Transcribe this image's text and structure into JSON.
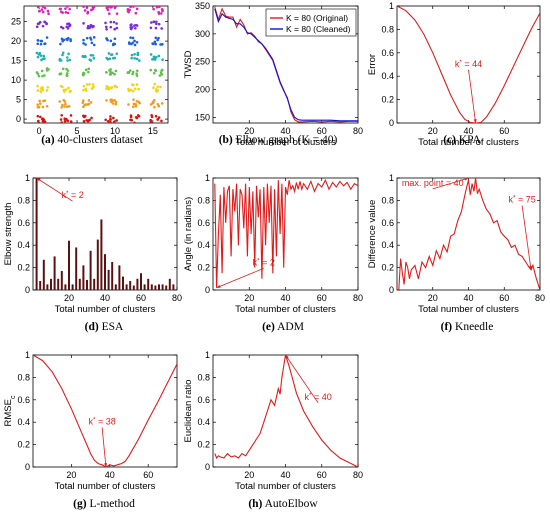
{
  "chart_data": [
    {
      "id": "a",
      "type": "scatter",
      "caption_letter": "(a)",
      "caption_text": "40-clusters dataset",
      "xlim": [
        -2,
        17
      ],
      "ylim": [
        -1,
        29
      ],
      "xticks": [
        0,
        5,
        10,
        15
      ],
      "yticks": [
        0,
        5,
        10,
        15,
        20,
        25
      ],
      "cluster_x": [
        0.5,
        3.5,
        6.5,
        9.5,
        12.5,
        15.5
      ],
      "cluster_y": [
        0,
        4,
        8,
        12,
        16,
        20,
        24,
        28
      ],
      "cluster_colors": [
        "#e01010",
        "#f39a1d",
        "#f5d30a",
        "#5cc24a",
        "#1fb0b0",
        "#1d5fe0",
        "#7a2be0",
        "#e020b8"
      ]
    },
    {
      "id": "b",
      "type": "line",
      "caption_letter": "(b)",
      "caption_text": "Elbow graph (K = 40)",
      "xlabel": "Total number of clusters",
      "ylabel": "TWSD",
      "xlim": [
        0,
        80
      ],
      "ylim": [
        140,
        350
      ],
      "xticks": [
        20,
        40,
        60,
        80
      ],
      "yticks": [
        150,
        200,
        250,
        300,
        350
      ],
      "legend_position": "top-right",
      "series": [
        {
          "name": "K = 80 (Original)",
          "color": "#e01b1b",
          "x": [
            1,
            3,
            5,
            7,
            9,
            11,
            13,
            15,
            17,
            19,
            21,
            23,
            25,
            27,
            29,
            31,
            33,
            35,
            37,
            39,
            41,
            43,
            45,
            47,
            49,
            55,
            60,
            65,
            70,
            75,
            80
          ],
          "y": [
            348,
            326,
            345,
            332,
            330,
            330,
            312,
            326,
            316,
            300,
            302,
            296,
            286,
            282,
            272,
            262,
            252,
            232,
            212,
            198,
            186,
            160,
            146,
            142,
            142,
            143,
            142,
            143,
            142,
            143,
            143
          ]
        },
        {
          "name": "K = 80 (Cleaned)",
          "color": "#1010d8",
          "x": [
            1,
            3,
            5,
            7,
            9,
            11,
            13,
            15,
            17,
            19,
            21,
            23,
            25,
            27,
            29,
            31,
            33,
            35,
            37,
            39,
            41,
            43,
            45,
            47,
            49,
            55,
            60,
            65,
            70,
            75,
            80
          ],
          "y": [
            345,
            322,
            336,
            330,
            328,
            326,
            318,
            318,
            312,
            302,
            300,
            294,
            288,
            282,
            274,
            264,
            254,
            234,
            214,
            199,
            184,
            164,
            150,
            146,
            145,
            145,
            145,
            145,
            144,
            144,
            144
          ]
        }
      ]
    },
    {
      "id": "c",
      "type": "line",
      "caption_letter": "(c)",
      "caption_text": "KPA",
      "xlabel": "Total number of clusters",
      "ylabel": "Error",
      "xlim": [
        0,
        80
      ],
      "ylim": [
        0,
        1
      ],
      "xticks": [
        20,
        40,
        60
      ],
      "yticks": [
        0,
        0.2,
        0.4,
        0.6,
        0.8,
        1
      ],
      "series": [
        {
          "color": "#e01b1b",
          "x": [
            0,
            5,
            10,
            15,
            20,
            25,
            30,
            35,
            38,
            41,
            44,
            47,
            50,
            55,
            60,
            65,
            70,
            75,
            80
          ],
          "y": [
            1.0,
            0.96,
            0.88,
            0.76,
            0.6,
            0.42,
            0.24,
            0.09,
            0.03,
            0.005,
            0.0,
            0.005,
            0.05,
            0.17,
            0.32,
            0.48,
            0.64,
            0.8,
            0.94
          ]
        }
      ],
      "annotations": [
        {
          "text": "k",
          "sup": "*",
          "rest": " = 44",
          "x": 44,
          "y": 0.0,
          "tx": 40,
          "ty": 0.48
        }
      ]
    },
    {
      "id": "d",
      "type": "bar",
      "caption_letter": "(d)",
      "caption_text": "ESA",
      "xlabel": "Total number of clusters",
      "ylabel": "Elbow strength",
      "xlim": [
        0,
        80
      ],
      "ylim": [
        0,
        1
      ],
      "xticks": [
        20,
        40,
        60,
        80
      ],
      "yticks": [
        0,
        0.2,
        0.4,
        0.6,
        0.8,
        1
      ],
      "x": [
        2,
        4,
        6,
        8,
        10,
        12,
        14,
        16,
        18,
        20,
        22,
        24,
        26,
        28,
        30,
        32,
        34,
        36,
        38,
        40,
        42,
        44,
        46,
        48,
        50,
        52,
        54,
        56,
        58,
        60,
        62,
        64,
        66,
        68,
        70,
        72,
        74,
        76,
        78
      ],
      "values": [
        1.0,
        0.08,
        0.27,
        0.05,
        0.1,
        0.3,
        0.1,
        0.17,
        0.05,
        0.44,
        0.05,
        0.38,
        0.1,
        0.22,
        0.09,
        0.35,
        0.1,
        0.45,
        0.63,
        0.32,
        0.18,
        0.25,
        0.05,
        0.22,
        0.12,
        0.05,
        0.08,
        0.04,
        0.1,
        0.15,
        0.05,
        0.1,
        0.05,
        0.04,
        0.05,
        0.05,
        0.04,
        0.1,
        0.05
      ],
      "bar_color": "#5a1010",
      "annotations": [
        {
          "text": "k",
          "sup": "*",
          "rest": " = 2",
          "x": 2,
          "y": 1.0,
          "tx": 22,
          "ty": 0.82
        }
      ]
    },
    {
      "id": "e",
      "type": "line",
      "caption_letter": "(e)",
      "caption_text": "ADM",
      "xlabel": "Total number of clusters",
      "ylabel": "Angle (in radians)",
      "xlim": [
        0,
        80
      ],
      "ylim": [
        0,
        1
      ],
      "xticks": [
        20,
        40,
        60,
        80
      ],
      "yticks": [
        0,
        0.2,
        0.4,
        0.6,
        0.8,
        1
      ],
      "series": [
        {
          "color": "#e01b1b",
          "x": [
            1,
            2,
            3,
            4,
            5,
            6,
            7,
            8,
            9,
            10,
            11,
            12,
            13,
            14,
            15,
            16,
            17,
            18,
            19,
            20,
            21,
            22,
            23,
            24,
            25,
            26,
            27,
            28,
            29,
            30,
            31,
            32,
            33,
            34,
            35,
            36,
            37,
            38,
            39,
            40,
            41,
            42,
            43,
            44,
            45,
            46,
            47,
            48,
            49,
            50,
            52,
            54,
            56,
            58,
            60,
            62,
            64,
            66,
            68,
            70,
            72,
            74,
            76,
            78,
            80
          ],
          "y": [
            0.95,
            0.02,
            0.5,
            0.85,
            0.15,
            0.92,
            0.6,
            0.88,
            0.93,
            0.3,
            0.9,
            0.7,
            0.95,
            0.4,
            0.9,
            0.85,
            0.55,
            0.95,
            0.3,
            0.92,
            0.5,
            0.88,
            0.2,
            0.93,
            0.65,
            0.9,
            0.1,
            0.92,
            0.4,
            0.95,
            0.6,
            0.93,
            0.15,
            0.9,
            0.3,
            0.98,
            0.5,
            0.95,
            0.2,
            0.92,
            0.85,
            0.98,
            0.9,
            0.93,
            0.88,
            0.96,
            0.9,
            0.97,
            0.9,
            0.95,
            0.9,
            0.97,
            0.88,
            0.95,
            0.92,
            0.98,
            0.9,
            0.96,
            0.92,
            0.97,
            0.93,
            0.96,
            0.9,
            0.95,
            0.93
          ]
        }
      ],
      "annotations": [
        {
          "text": "k",
          "sup": "*",
          "rest": " = 2",
          "x": 2,
          "y": 0.02,
          "tx": 28,
          "ty": 0.22
        }
      ]
    },
    {
      "id": "f",
      "type": "line",
      "caption_letter": "(f)",
      "caption_text": "Kneedle",
      "xlabel": "Total number of clusters",
      "ylabel": "Difference value",
      "xlim": [
        0,
        80
      ],
      "ylim": [
        0,
        1
      ],
      "xticks": [
        20,
        40,
        60,
        80
      ],
      "yticks": [
        0,
        0.2,
        0.4,
        0.6,
        0.8,
        1
      ],
      "series": [
        {
          "color": "#e01b1b",
          "x": [
            1,
            2,
            3,
            4,
            5,
            6,
            7,
            8,
            10,
            12,
            14,
            16,
            18,
            20,
            22,
            24,
            26,
            28,
            30,
            32,
            34,
            36,
            38,
            39,
            40,
            41,
            42,
            43,
            44,
            45,
            46,
            48,
            50,
            52,
            54,
            56,
            58,
            60,
            62,
            64,
            66,
            68,
            70,
            72,
            74,
            75,
            76,
            78,
            80
          ],
          "y": [
            0.0,
            0.28,
            0.15,
            0.05,
            0.25,
            0.2,
            0.1,
            0.18,
            0.22,
            0.1,
            0.25,
            0.2,
            0.3,
            0.22,
            0.35,
            0.28,
            0.4,
            0.34,
            0.48,
            0.5,
            0.62,
            0.7,
            0.85,
            0.92,
            0.98,
            0.85,
            0.95,
            0.88,
            1.0,
            0.86,
            0.9,
            0.8,
            0.72,
            0.68,
            0.6,
            0.62,
            0.52,
            0.48,
            0.45,
            0.38,
            0.4,
            0.32,
            0.3,
            0.25,
            0.2,
            0.18,
            0.22,
            0.1,
            0.0
          ]
        }
      ],
      "annotations": [
        {
          "text": "max. point = 40",
          "x": 40,
          "y": 1.0,
          "tx": 20,
          "ty": 0.93,
          "noarrow": false
        },
        {
          "text": "k",
          "sup": "*",
          "rest": " = 75",
          "x": 75,
          "y": 0.18,
          "tx": 70,
          "ty": 0.78
        }
      ]
    },
    {
      "id": "g",
      "type": "line",
      "caption_letter": "(g)",
      "caption_text": "L-method",
      "xlabel": "Total number of clusters",
      "ylabel": "RMSE",
      "ylabel_sub": "c",
      "xlim": [
        0,
        75
      ],
      "ylim": [
        0,
        1
      ],
      "xticks": [
        20,
        40,
        60
      ],
      "yticks": [
        0,
        0.2,
        0.4,
        0.6,
        0.8,
        1
      ],
      "series": [
        {
          "color": "#e01b1b",
          "x": [
            0,
            5,
            10,
            15,
            20,
            25,
            28,
            30,
            32,
            34,
            36,
            38,
            40,
            42,
            44,
            46,
            48,
            50,
            55,
            60,
            65,
            70,
            75
          ],
          "y": [
            1.0,
            0.95,
            0.85,
            0.7,
            0.52,
            0.32,
            0.2,
            0.12,
            0.06,
            0.03,
            0.02,
            0.0,
            0.02,
            0.01,
            0.02,
            0.03,
            0.05,
            0.1,
            0.25,
            0.42,
            0.58,
            0.75,
            0.92
          ]
        }
      ],
      "annotations": [
        {
          "text": "k",
          "sup": "*",
          "rest": " = 38",
          "x": 38,
          "y": 0.0,
          "tx": 36,
          "ty": 0.38
        }
      ]
    },
    {
      "id": "h",
      "type": "line",
      "caption_letter": "(h)",
      "caption_text": "AutoElbow",
      "xlabel": "Total number of clusters",
      "ylabel": "Euclidean ratio",
      "xlim": [
        0,
        80
      ],
      "ylim": [
        0,
        1
      ],
      "xticks": [
        20,
        40,
        60,
        80
      ],
      "yticks": [
        0,
        0.2,
        0.4,
        0.6,
        0.8,
        1
      ],
      "series": [
        {
          "color": "#e01b1b",
          "x": [
            1,
            2,
            3,
            4,
            6,
            8,
            10,
            12,
            14,
            16,
            18,
            20,
            22,
            24,
            26,
            28,
            30,
            32,
            34,
            36,
            37,
            38,
            39,
            40,
            42,
            44,
            46,
            48,
            50,
            55,
            60,
            65,
            70,
            75,
            80
          ],
          "y": [
            0.12,
            0.08,
            0.1,
            0.09,
            0.08,
            0.12,
            0.09,
            0.1,
            0.08,
            0.12,
            0.1,
            0.15,
            0.2,
            0.25,
            0.3,
            0.4,
            0.5,
            0.6,
            0.55,
            0.7,
            0.65,
            0.8,
            0.9,
            1.0,
            0.9,
            0.78,
            0.66,
            0.58,
            0.5,
            0.36,
            0.24,
            0.15,
            0.08,
            0.04,
            0.0
          ]
        }
      ],
      "annotations": [
        {
          "text": "k",
          "sup": "*",
          "rest": " = 40",
          "x": 40,
          "y": 1.0,
          "tx": 58,
          "ty": 0.6
        }
      ]
    }
  ]
}
